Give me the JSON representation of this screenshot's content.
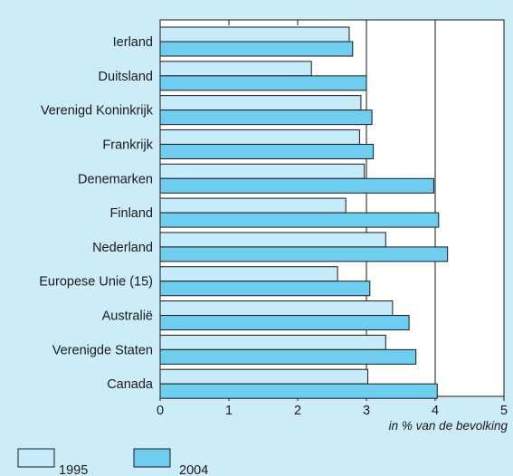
{
  "chart_data": {
    "type": "bar",
    "orientation": "horizontal",
    "categories": [
      "Ierland",
      "Duitsland",
      "Verenigd Koninkrijk",
      "Frankrijk",
      "Denemarken",
      "Finland",
      "Nederland",
      "Europese Unie (15)",
      "Australië",
      "Verenigde Staten",
      "Canada"
    ],
    "series": [
      {
        "name": "1995",
        "color": "#c6ebfa",
        "values": [
          2.75,
          2.2,
          2.92,
          2.9,
          2.97,
          2.7,
          3.28,
          2.58,
          3.38,
          3.28,
          3.02
        ]
      },
      {
        "name": "2004",
        "color": "#6fcdf0",
        "values": [
          2.8,
          3.0,
          3.08,
          3.1,
          3.98,
          4.05,
          4.18,
          3.05,
          3.62,
          3.72,
          4.03
        ]
      }
    ],
    "xlim": [
      0,
      5
    ],
    "xticks": [
      "0",
      "1",
      "2",
      "3",
      "4",
      "5"
    ],
    "xlabel": "in % van de bevolking",
    "gridlines": [
      3,
      4
    ],
    "legend_position": "bottom-left",
    "plot_background": "#ffffff",
    "page_background": "#ccecf8"
  }
}
